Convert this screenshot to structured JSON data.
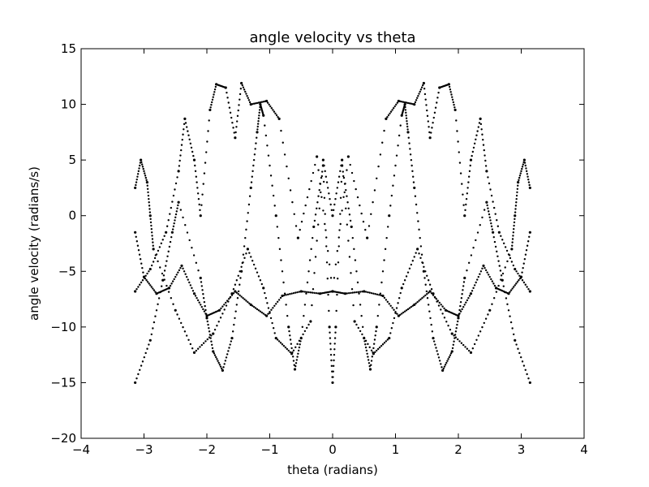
{
  "chart_data": {
    "type": "scatter",
    "title": "angle velocity vs theta",
    "xlabel": "theta (radians)",
    "ylabel": "angle velocity (radians/s)",
    "xlim": [
      -4,
      4
    ],
    "ylim": [
      -20,
      15
    ],
    "xticks": [
      -4,
      -3,
      -2,
      -1,
      0,
      1,
      2,
      3,
      4
    ],
    "yticks": [
      -20,
      -15,
      -10,
      -5,
      0,
      5,
      10,
      15
    ],
    "grid": false,
    "legend": "none",
    "marker_color": "#000000",
    "series": [
      {
        "points": [
          [
            -3.14,
            -15.0
          ],
          [
            -2.9,
            -11.2
          ],
          [
            -2.7,
            -5.8
          ],
          [
            -2.55,
            -1.5
          ],
          [
            -2.45,
            1.2
          ],
          [
            -2.1,
            -5.6
          ],
          [
            -2.0,
            -9.2
          ],
          [
            -1.9,
            -12.2
          ],
          [
            -1.75,
            -13.9
          ],
          [
            -1.6,
            -11.0
          ],
          [
            -1.45,
            -5.0
          ],
          [
            -1.3,
            2.5
          ],
          [
            -1.2,
            7.5
          ],
          [
            -1.15,
            10.0
          ],
          [
            -1.1,
            9.0
          ],
          [
            -0.9,
            0.0
          ],
          [
            -0.7,
            -10.0
          ],
          [
            -0.6,
            -13.8
          ],
          [
            -0.5,
            -11.0
          ],
          [
            -0.3,
            -1.0
          ],
          [
            -0.15,
            4.5
          ],
          [
            -0.05,
            -10.0
          ],
          [
            0.0,
            -15.0
          ],
          [
            0.05,
            -10.0
          ],
          [
            0.15,
            4.5
          ],
          [
            0.3,
            -1.0
          ],
          [
            0.5,
            -11.0
          ],
          [
            0.6,
            -13.8
          ],
          [
            0.7,
            -10.0
          ],
          [
            0.9,
            0.0
          ],
          [
            1.1,
            9.0
          ],
          [
            1.15,
            10.0
          ],
          [
            1.2,
            7.5
          ],
          [
            1.3,
            2.5
          ],
          [
            1.45,
            -5.0
          ],
          [
            1.6,
            -11.0
          ],
          [
            1.75,
            -13.9
          ],
          [
            1.9,
            -12.2
          ],
          [
            2.0,
            -9.2
          ],
          [
            2.1,
            -5.6
          ],
          [
            2.45,
            1.2
          ],
          [
            2.55,
            -1.5
          ],
          [
            2.7,
            -5.8
          ],
          [
            2.9,
            -11.2
          ],
          [
            3.14,
            -15.0
          ]
        ]
      },
      {
        "points": [
          [
            -3.14,
            2.5
          ],
          [
            -3.05,
            5.0
          ],
          [
            -2.95,
            3.0
          ],
          [
            -2.9,
            0.0
          ],
          [
            -2.85,
            -3.0
          ],
          [
            -2.5,
            -8.5
          ],
          [
            -2.2,
            -12.3
          ],
          [
            -1.9,
            -10.6
          ],
          [
            -1.6,
            -7.0
          ],
          [
            -1.35,
            -3.0
          ],
          [
            -1.1,
            -6.5
          ],
          [
            -0.9,
            -11.0
          ],
          [
            -0.65,
            -12.4
          ],
          [
            -0.35,
            -9.5
          ],
          [
            -0.15,
            5.0
          ],
          [
            0.0,
            0.0
          ],
          [
            0.15,
            5.0
          ],
          [
            0.35,
            -9.5
          ],
          [
            0.65,
            -12.4
          ],
          [
            0.9,
            -11.0
          ],
          [
            1.1,
            -6.5
          ],
          [
            1.35,
            -3.0
          ],
          [
            1.6,
            -7.0
          ],
          [
            1.9,
            -10.6
          ],
          [
            2.2,
            -12.3
          ],
          [
            2.5,
            -8.5
          ],
          [
            2.85,
            -3.0
          ],
          [
            2.9,
            0.0
          ],
          [
            2.95,
            3.0
          ],
          [
            3.05,
            5.0
          ],
          [
            3.14,
            2.5
          ]
        ]
      },
      {
        "points": [
          [
            -3.14,
            -6.8
          ],
          [
            -2.9,
            -4.8
          ],
          [
            -2.65,
            -1.5
          ],
          [
            -2.45,
            4.0
          ],
          [
            -2.35,
            8.7
          ],
          [
            -2.2,
            5.0
          ],
          [
            -2.1,
            0.0
          ],
          [
            -1.95,
            9.5
          ],
          [
            -1.85,
            11.8
          ],
          [
            -1.7,
            11.5
          ],
          [
            -1.55,
            7.0
          ],
          [
            -1.45,
            11.9
          ],
          [
            -1.3,
            10.0
          ],
          [
            -1.05,
            10.3
          ],
          [
            -0.85,
            8.7
          ],
          [
            -0.55,
            -2.0
          ],
          [
            -0.25,
            5.3
          ],
          [
            0.0,
            -6.8
          ],
          [
            0.25,
            5.3
          ],
          [
            0.55,
            -2.0
          ],
          [
            0.85,
            8.7
          ],
          [
            1.05,
            10.3
          ],
          [
            1.3,
            10.0
          ],
          [
            1.45,
            11.9
          ],
          [
            1.55,
            7.0
          ],
          [
            1.7,
            11.5
          ],
          [
            1.85,
            11.8
          ],
          [
            1.95,
            9.5
          ],
          [
            2.1,
            0.0
          ],
          [
            2.2,
            5.0
          ],
          [
            2.35,
            8.7
          ],
          [
            2.45,
            4.0
          ],
          [
            2.65,
            -1.5
          ],
          [
            2.9,
            -4.8
          ],
          [
            3.14,
            -6.8
          ]
        ]
      },
      {
        "points": [
          [
            -3.14,
            -1.5
          ],
          [
            -3.0,
            -5.5
          ],
          [
            -2.8,
            -7.0
          ],
          [
            -2.6,
            -6.5
          ],
          [
            -2.4,
            -4.5
          ],
          [
            -2.2,
            -7.0
          ],
          [
            -2.0,
            -9.0
          ],
          [
            -1.8,
            -8.5
          ],
          [
            -1.55,
            -6.8
          ],
          [
            -1.3,
            -8.0
          ],
          [
            -1.05,
            -9.0
          ],
          [
            -0.8,
            -7.2
          ],
          [
            -0.5,
            -6.8
          ],
          [
            -0.2,
            -7.0
          ],
          [
            0.0,
            -6.8
          ],
          [
            0.2,
            -7.0
          ],
          [
            0.5,
            -6.8
          ],
          [
            0.8,
            -7.2
          ],
          [
            1.05,
            -9.0
          ],
          [
            1.3,
            -8.0
          ],
          [
            1.55,
            -6.8
          ],
          [
            1.8,
            -8.5
          ],
          [
            2.0,
            -9.0
          ],
          [
            2.2,
            -7.0
          ],
          [
            2.4,
            -4.5
          ],
          [
            2.6,
            -6.5
          ],
          [
            2.8,
            -7.0
          ],
          [
            3.0,
            -5.5
          ],
          [
            3.14,
            -1.5
          ]
        ]
      }
    ]
  }
}
